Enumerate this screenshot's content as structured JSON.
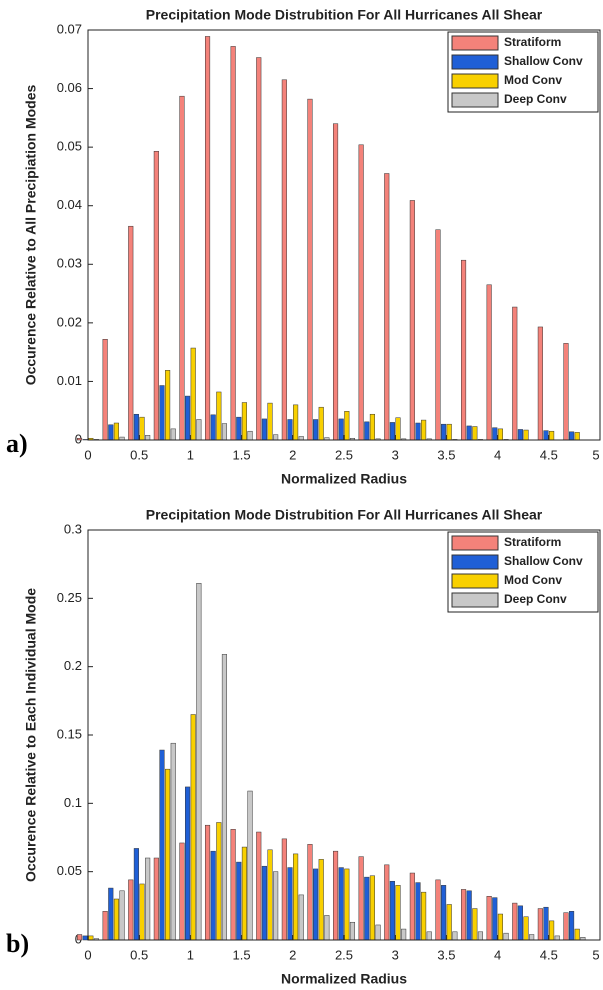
{
  "chart_data": [
    {
      "type": "bar",
      "panel_label": "a)",
      "title": "Precipitation Mode Distrubition For All Hurricanes All Shear",
      "xlabel": "Normalized Radius",
      "ylabel": "Occurence Relative to All Precipiation Modes",
      "x": [
        0,
        0.25,
        0.5,
        0.75,
        1,
        1.25,
        1.5,
        1.75,
        2,
        2.25,
        2.5,
        2.75,
        3,
        3.25,
        3.5,
        3.75,
        4,
        4.25,
        4.5,
        4.75
      ],
      "series": [
        {
          "name": "Stratiform",
          "color": "#f4827a",
          "values": [
            0.0003,
            0.0172,
            0.0365,
            0.0493,
            0.0587,
            0.0689,
            0.0672,
            0.0653,
            0.0615,
            0.0582,
            0.054,
            0.0504,
            0.0455,
            0.0409,
            0.0359,
            0.0307,
            0.0265,
            0.0227,
            0.0193,
            0.0165
          ]
        },
        {
          "name": "Shallow Conv",
          "color": "#1f5fd6",
          "values": [
            0.0001,
            0.0026,
            0.0044,
            0.0093,
            0.0075,
            0.0043,
            0.0039,
            0.0036,
            0.0035,
            0.0035,
            0.0036,
            0.0031,
            0.003,
            0.0029,
            0.0027,
            0.0024,
            0.0021,
            0.0018,
            0.0016,
            0.0014
          ]
        },
        {
          "name": "Mod Conv",
          "color": "#f8d000",
          "values": [
            0.0003,
            0.0029,
            0.0039,
            0.0119,
            0.0157,
            0.0082,
            0.0064,
            0.0063,
            0.006,
            0.0056,
            0.0049,
            0.0044,
            0.0038,
            0.0034,
            0.0027,
            0.0023,
            0.0019,
            0.0017,
            0.0015,
            0.0013
          ]
        },
        {
          "name": "Deep Conv",
          "color": "#c8c8c8",
          "values": [
            0.0001,
            0.0005,
            0.0008,
            0.0019,
            0.0035,
            0.0028,
            0.0015,
            0.0009,
            0.0006,
            0.0004,
            0.0003,
            0.0002,
            0.0002,
            0.0002,
            0.0001,
            0.0001,
            0.0001,
            0,
            0,
            0
          ]
        }
      ],
      "xlim": [
        0,
        5
      ],
      "xticks": [
        0,
        0.5,
        1,
        1.5,
        2,
        2.5,
        3,
        3.5,
        4,
        4.5,
        5
      ],
      "ylim": [
        0,
        0.07
      ],
      "yticks": [
        0,
        0.01,
        0.02,
        0.03,
        0.04,
        0.05,
        0.06,
        0.07
      ],
      "legend": "upper right"
    },
    {
      "type": "bar",
      "panel_label": "b)",
      "title": "Precipitation Mode Distrubition For All Hurricanes All Shear",
      "xlabel": "Normalized Radius",
      "ylabel": "Occurence Relative to Each Individual Mode",
      "x": [
        0,
        0.25,
        0.5,
        0.75,
        1,
        1.25,
        1.5,
        1.75,
        2,
        2.25,
        2.5,
        2.75,
        3,
        3.25,
        3.5,
        3.75,
        4,
        4.25,
        4.5,
        4.75
      ],
      "series": [
        {
          "name": "Stratiform",
          "color": "#f4827a",
          "values": [
            0.004,
            0.021,
            0.044,
            0.06,
            0.071,
            0.084,
            0.081,
            0.079,
            0.074,
            0.07,
            0.065,
            0.061,
            0.055,
            0.049,
            0.044,
            0.037,
            0.032,
            0.027,
            0.023,
            0.02
          ]
        },
        {
          "name": "Shallow Conv",
          "color": "#1f5fd6",
          "values": [
            0.003,
            0.038,
            0.067,
            0.139,
            0.112,
            0.065,
            0.057,
            0.054,
            0.053,
            0.052,
            0.053,
            0.046,
            0.043,
            0.042,
            0.04,
            0.036,
            0.031,
            0.025,
            0.024,
            0.021
          ]
        },
        {
          "name": "Mod Conv",
          "color": "#f8d000",
          "values": [
            0.003,
            0.03,
            0.041,
            0.125,
            0.165,
            0.086,
            0.068,
            0.066,
            0.063,
            0.059,
            0.052,
            0.047,
            0.04,
            0.035,
            0.026,
            0.023,
            0.019,
            0.017,
            0.014,
            0.008
          ]
        },
        {
          "name": "Deep Conv",
          "color": "#c8c8c8",
          "values": [
            0.001,
            0.036,
            0.06,
            0.144,
            0.261,
            0.209,
            0.109,
            0.05,
            0.033,
            0.018,
            0.013,
            0.011,
            0.008,
            0.006,
            0.006,
            0.006,
            0.005,
            0.004,
            0.003,
            0.002
          ]
        }
      ],
      "xlim": [
        0,
        5
      ],
      "xticks": [
        0,
        0.5,
        1,
        1.5,
        2,
        2.5,
        3,
        3.5,
        4,
        4.5,
        5
      ],
      "ylim": [
        0,
        0.3
      ],
      "yticks": [
        0,
        0.05,
        0.1,
        0.15,
        0.2,
        0.25,
        0.3
      ],
      "legend": "upper right"
    }
  ]
}
